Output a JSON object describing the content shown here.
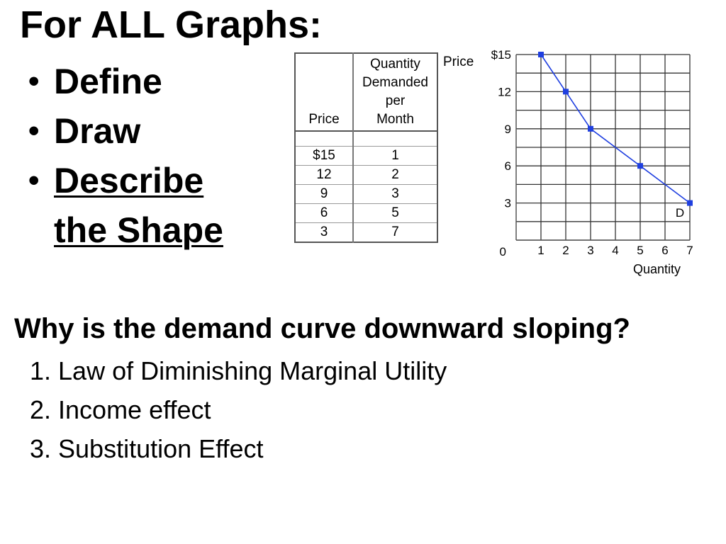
{
  "title": "For ALL Graphs:",
  "bullets": [
    {
      "text": "Define"
    },
    {
      "text": "Draw"
    },
    {
      "text_line1": "Describe",
      "text_line2": "the Shape"
    }
  ],
  "table": {
    "headers": {
      "price": "Price",
      "quantity_lines": [
        "Quantity",
        "Demanded",
        "per",
        "Month"
      ]
    },
    "rows": [
      {
        "price": "$15",
        "quantity": "1"
      },
      {
        "price": "12",
        "quantity": "2"
      },
      {
        "price": "9",
        "quantity": "3"
      },
      {
        "price": "6",
        "quantity": "5"
      },
      {
        "price": "3",
        "quantity": "7"
      }
    ]
  },
  "chart_data": {
    "type": "line",
    "ylabel": "Price",
    "xlabel": "Quantity",
    "curve_label": "D",
    "x": [
      1,
      2,
      3,
      5,
      7
    ],
    "y": [
      15,
      12,
      9,
      6,
      3
    ],
    "xlim": [
      0,
      7
    ],
    "ylim": [
      0,
      15
    ],
    "x_ticks": [
      "1",
      "2",
      "3",
      "4",
      "5",
      "6",
      "7"
    ],
    "y_ticks": [
      "$15",
      "12",
      "9",
      "6",
      "3"
    ],
    "origin_label": "0",
    "grid": true,
    "line_color": "#1f3fe0",
    "marker_color": "#1f3fe0"
  },
  "question": "Why is the demand curve downward sloping?",
  "reasons": [
    "1. Law of Diminishing Marginal Utility",
    "2. Income effect",
    "3. Substitution Effect"
  ]
}
